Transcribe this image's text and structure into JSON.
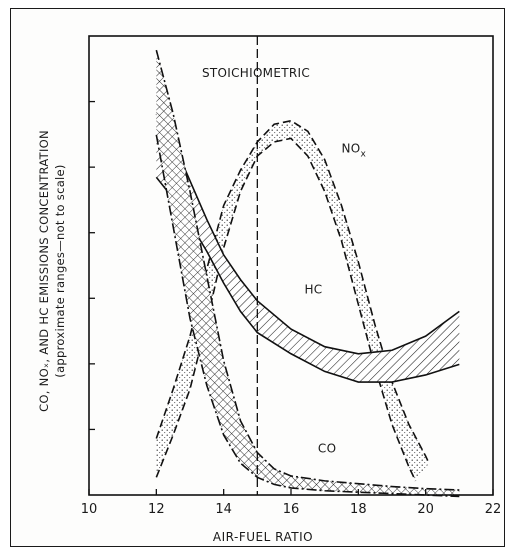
{
  "chart_data": {
    "type": "line",
    "title": "",
    "xlabel": "AIR-FUEL RATIO",
    "ylabel": "CO, NOₓ, AND HC EMISSIONS CONCENTRATION",
    "ylabel_sub": "(approximate ranges—not to scale)",
    "xlim": [
      10,
      22
    ],
    "ylim": [
      0,
      6.5
    ],
    "x_ticks": [
      "10",
      "12",
      "14",
      "16",
      "18",
      "20",
      "22"
    ],
    "y_ticks_count": 6,
    "grid": false,
    "legend": "none",
    "annotations": {
      "stoichiometric_label": "STOICHIOMETRIC",
      "stoichiometric_x": 15
    },
    "series": [
      {
        "name": "NO",
        "name_sub": "x",
        "band": true,
        "fill": "stipple",
        "upper": [
          [
            12,
            0.8
          ],
          [
            12.5,
            1.5
          ],
          [
            13,
            2.25
          ],
          [
            13.5,
            3.2
          ],
          [
            14,
            4.1
          ],
          [
            14.5,
            4.6
          ],
          [
            15,
            5.0
          ],
          [
            15.5,
            5.25
          ],
          [
            16,
            5.3
          ],
          [
            16.5,
            5.15
          ],
          [
            17,
            4.75
          ],
          [
            17.5,
            4.1
          ],
          [
            18,
            3.3
          ],
          [
            18.5,
            2.4
          ],
          [
            19,
            1.6
          ],
          [
            19.5,
            1.0
          ],
          [
            20,
            0.55
          ],
          [
            20.1,
            0.45
          ]
        ],
        "lower": [
          [
            12,
            0.25
          ],
          [
            12.5,
            0.85
          ],
          [
            13,
            1.5
          ],
          [
            13.5,
            2.45
          ],
          [
            14,
            3.5
          ],
          [
            14.5,
            4.3
          ],
          [
            15,
            4.8
          ],
          [
            15.5,
            5.0
          ],
          [
            16,
            5.05
          ],
          [
            16.5,
            4.8
          ],
          [
            17,
            4.3
          ],
          [
            17.5,
            3.6
          ],
          [
            18,
            2.7
          ],
          [
            18.5,
            1.8
          ],
          [
            19,
            1.0
          ],
          [
            19.5,
            0.4
          ],
          [
            19.7,
            0.2
          ]
        ],
        "label_x": 17.5,
        "label_y": 4.85
      },
      {
        "name": "HC",
        "band": true,
        "fill": "hatch",
        "upper": [
          [
            12,
            5.4
          ],
          [
            12.5,
            5.0
          ],
          [
            13,
            4.45
          ],
          [
            13.5,
            3.9
          ],
          [
            14,
            3.4
          ],
          [
            14.5,
            3.05
          ],
          [
            15,
            2.75
          ],
          [
            16,
            2.35
          ],
          [
            17,
            2.1
          ],
          [
            18,
            2.0
          ],
          [
            19,
            2.05
          ],
          [
            20,
            2.25
          ],
          [
            21,
            2.6
          ]
        ],
        "lower": [
          [
            12,
            4.5
          ],
          [
            12.5,
            4.2
          ],
          [
            13,
            3.85
          ],
          [
            13.5,
            3.45
          ],
          [
            14,
            3.0
          ],
          [
            14.5,
            2.6
          ],
          [
            15,
            2.3
          ],
          [
            16,
            2.0
          ],
          [
            17,
            1.75
          ],
          [
            18,
            1.6
          ],
          [
            19,
            1.6
          ],
          [
            20,
            1.7
          ],
          [
            21,
            1.85
          ]
        ],
        "label_x": 16.4,
        "label_y": 2.85
      },
      {
        "name": "CO",
        "band": true,
        "fill": "crosshatch",
        "upper": [
          [
            12,
            6.3
          ],
          [
            12.5,
            5.4
          ],
          [
            13,
            4.3
          ],
          [
            13.5,
            3.1
          ],
          [
            14,
            1.9
          ],
          [
            14.5,
            1.05
          ],
          [
            15,
            0.6
          ],
          [
            15.5,
            0.37
          ],
          [
            16,
            0.27
          ],
          [
            17,
            0.2
          ],
          [
            18,
            0.16
          ],
          [
            19,
            0.12
          ],
          [
            20,
            0.09
          ],
          [
            21,
            0.07
          ]
        ],
        "lower": [
          [
            12,
            5.1
          ],
          [
            12.5,
            3.8
          ],
          [
            13,
            2.5
          ],
          [
            13.5,
            1.55
          ],
          [
            14,
            0.85
          ],
          [
            14.5,
            0.45
          ],
          [
            15,
            0.25
          ],
          [
            15.5,
            0.15
          ],
          [
            16,
            0.1
          ],
          [
            17,
            0.06
          ],
          [
            18,
            0.04
          ],
          [
            19,
            0.02
          ],
          [
            20,
            0.0
          ],
          [
            21,
            -0.02
          ]
        ],
        "label_x": 16.8,
        "label_y": 0.6
      }
    ]
  }
}
